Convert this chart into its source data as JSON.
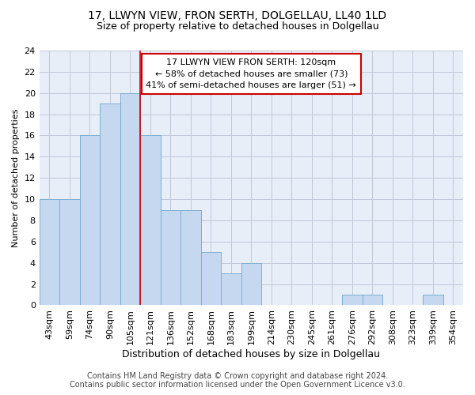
{
  "title1": "17, LLWYN VIEW, FRON SERTH, DOLGELLAU, LL40 1LD",
  "title2": "Size of property relative to detached houses in Dolgellau",
  "xlabel": "Distribution of detached houses by size in Dolgellau",
  "ylabel": "Number of detached properties",
  "categories": [
    "43sqm",
    "59sqm",
    "74sqm",
    "90sqm",
    "105sqm",
    "121sqm",
    "136sqm",
    "152sqm",
    "168sqm",
    "183sqm",
    "199sqm",
    "214sqm",
    "230sqm",
    "245sqm",
    "261sqm",
    "276sqm",
    "292sqm",
    "308sqm",
    "323sqm",
    "339sqm",
    "354sqm"
  ],
  "values": [
    10,
    10,
    16,
    19,
    20,
    16,
    9,
    9,
    5,
    3,
    4,
    0,
    0,
    0,
    0,
    1,
    1,
    0,
    0,
    1,
    0
  ],
  "bar_color": "#c5d8f0",
  "bar_edge_color": "#7aafd4",
  "highlight_index": 5,
  "red_line_x": 5,
  "ylim": [
    0,
    24
  ],
  "yticks": [
    0,
    2,
    4,
    6,
    8,
    10,
    12,
    14,
    16,
    18,
    20,
    22,
    24
  ],
  "annotation_text_line1": "17 LLWYN VIEW FRON SERTH: 120sqm",
  "annotation_text_line2": "← 58% of detached houses are smaller (73)",
  "annotation_text_line3": "41% of semi-detached houses are larger (51) →",
  "annotation_box_color": "#ffffff",
  "annotation_box_edge": "#cc0000",
  "footer1": "Contains HM Land Registry data © Crown copyright and database right 2024.",
  "footer2": "Contains public sector information licensed under the Open Government Licence v3.0.",
  "background_color": "#ffffff",
  "plot_bg_color": "#e8eef8",
  "grid_color": "#c0c8d8",
  "title1_fontsize": 10,
  "title2_fontsize": 9,
  "xlabel_fontsize": 9,
  "ylabel_fontsize": 8,
  "tick_fontsize": 8,
  "annotation_fontsize": 8,
  "footer_fontsize": 7
}
